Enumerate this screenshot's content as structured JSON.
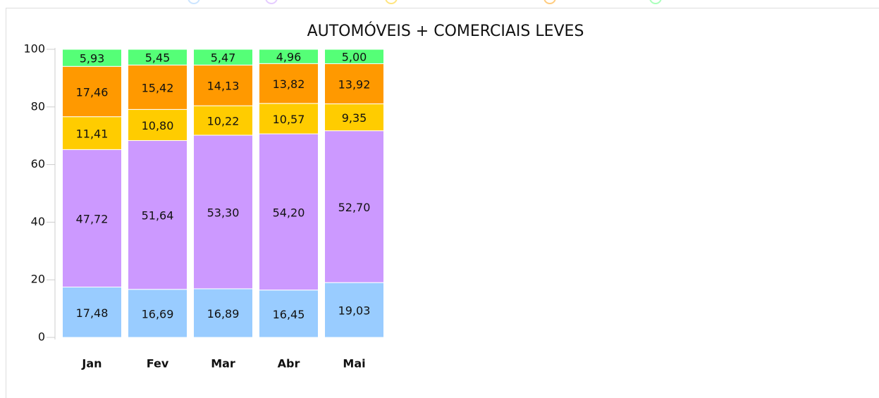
{
  "chart_data": {
    "type": "bar",
    "stacked": true,
    "title": "AUTOMÓVEIS + COMERCIAIS LEVES",
    "categories": [
      "Jan",
      "Fev",
      "Mar",
      "Abr",
      "Mai"
    ],
    "ylim": [
      0,
      100
    ],
    "yticks": [
      0,
      20,
      40,
      60,
      80,
      100
    ],
    "series": [
      {
        "color": "#99ccff",
        "values": [
          17.48,
          16.69,
          16.89,
          16.45,
          19.03
        ],
        "value_labels": [
          "17,48",
          "16,69",
          "16,89",
          "16,45",
          "19,03"
        ]
      },
      {
        "color": "#cc99ff",
        "values": [
          47.72,
          51.64,
          53.3,
          54.2,
          52.7
        ],
        "value_labels": [
          "47,72",
          "51,64",
          "53,30",
          "54,20",
          "52,70"
        ]
      },
      {
        "color": "#ffcc00",
        "values": [
          11.41,
          10.8,
          10.22,
          10.57,
          9.35
        ],
        "value_labels": [
          "11,41",
          "10,80",
          "10,22",
          "10,57",
          "9,35"
        ]
      },
      {
        "color": "#ff9900",
        "values": [
          17.46,
          15.42,
          14.13,
          13.82,
          13.92
        ],
        "value_labels": [
          "17,46",
          "15,42",
          "14,13",
          "13,82",
          "13,92"
        ]
      },
      {
        "color": "#55ff77",
        "values": [
          5.93,
          5.45,
          5.47,
          4.96,
          5.0
        ],
        "value_labels": [
          "5,93",
          "5,45",
          "5,47",
          "4,96",
          "5,00"
        ]
      }
    ]
  }
}
